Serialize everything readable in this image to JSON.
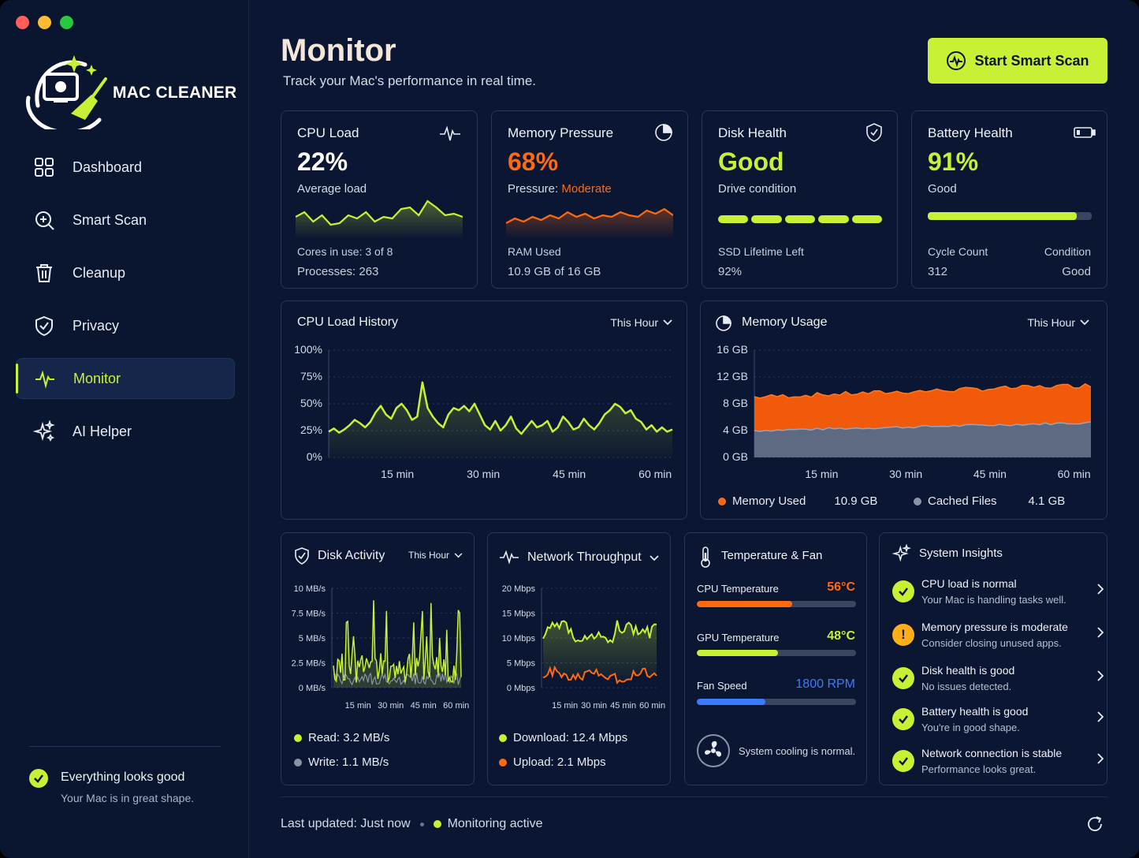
{
  "app": {
    "name": "MAC CLEANER",
    "colors": {
      "accent": "#c8f034",
      "orange": "#ff6a10",
      "blue": "#3b7bff",
      "gray": "#8a93a6"
    }
  },
  "sidebar": {
    "items": [
      {
        "label": "Dashboard",
        "icon": "grid-icon"
      },
      {
        "label": "Smart Scan",
        "icon": "scan-icon"
      },
      {
        "label": "Cleanup",
        "icon": "trash-icon"
      },
      {
        "label": "Privacy",
        "icon": "shield-icon"
      },
      {
        "label": "Monitor",
        "icon": "pulse-icon",
        "active": true
      },
      {
        "label": "AI Helper",
        "icon": "sparkles-icon"
      }
    ],
    "status": {
      "title": "Everything looks good",
      "detail": "Your Mac is in great shape."
    }
  },
  "header": {
    "title": "Monitor",
    "subtitle": "Track your Mac's performance in real time.",
    "scan_button": "Start Smart Scan"
  },
  "cpu_card": {
    "title": "CPU Load",
    "value": "22%",
    "caption": "Average load",
    "cores": "Cores in use: 3 of 8",
    "processes": "Processes: 263",
    "sparkline": [
      28,
      34,
      22,
      30,
      18,
      20,
      30,
      26,
      34,
      22,
      28,
      26,
      38,
      40,
      30,
      48,
      40,
      30,
      32,
      28
    ]
  },
  "memory_card": {
    "title": "Memory Pressure",
    "value": "68%",
    "caption_prefix": "Pressure: ",
    "caption_value": "Moderate",
    "ram_label": "RAM Used",
    "ram_value": "10.9 GB of 16 GB",
    "sparkline": [
      20,
      26,
      22,
      28,
      24,
      30,
      26,
      34,
      28,
      32,
      26,
      30,
      28,
      34,
      30,
      28,
      36,
      32,
      38,
      30
    ]
  },
  "disk_card": {
    "title": "Disk Health",
    "value": "Good",
    "caption": "Drive condition",
    "ssd_label": "SSD Lifetime Left",
    "ssd_value": "92%",
    "segments_filled": 5,
    "segments_total": 5
  },
  "battery_card": {
    "title": "Battery Health",
    "value": "91%",
    "caption": "Good",
    "cycle_label": "Cycle Count",
    "cycle_value": "312",
    "condition_label": "Condition",
    "condition_value": "Good",
    "level": 0.91
  },
  "cpu_history": {
    "title": "CPU Load History",
    "range": "This Hour",
    "y_ticks": [
      "100%",
      "75%",
      "50%",
      "25%",
      "0%"
    ],
    "x_ticks": [
      "15 min",
      "30 min",
      "45 min",
      "60 min"
    ]
  },
  "memory_usage": {
    "title": "Memory Usage",
    "range": "This Hour",
    "y_ticks": [
      "16 GB",
      "12 GB",
      "8 GB",
      "4 GB",
      "0 GB"
    ],
    "x_ticks": [
      "15 min",
      "30 min",
      "45 min",
      "60 min"
    ],
    "legend": [
      {
        "name": "Memory Used",
        "value": "10.9 GB",
        "color": "#ff6a10"
      },
      {
        "name": "Cached Files",
        "value": "4.1 GB",
        "color": "#8a93a6"
      }
    ]
  },
  "disk_activity": {
    "title": "Disk Activity",
    "range": "This Hour",
    "y_ticks": [
      "10 MB/s",
      "7.5 MB/s",
      "5 MB/s",
      "2.5 MB/s",
      "0 MB/s"
    ],
    "x_ticks": [
      "15 min",
      "30 min",
      "45 min",
      "60 min"
    ],
    "legend": [
      {
        "text": "Read: 3.2 MB/s",
        "color": "#c8f034"
      },
      {
        "text": "Write: 1.1 MB/s",
        "color": "#8a93a6"
      }
    ]
  },
  "network": {
    "title": "Network Throughput",
    "y_ticks": [
      "20 Mbps",
      "15 Mbps",
      "10 Mbps",
      "5 Mbps",
      "0 Mbps"
    ],
    "x_ticks": [
      "15 min",
      "30 min",
      "45 min",
      "60 min"
    ],
    "legend": [
      {
        "text": "Download: 12.4 Mbps",
        "color": "#c8f034"
      },
      {
        "text": "Upload: 2.1 Mbps",
        "color": "#ff6a10"
      }
    ]
  },
  "temperature": {
    "title": "Temperature & Fan",
    "rows": [
      {
        "label": "CPU Temperature",
        "value": "56°C",
        "color": "#ff6a10",
        "level": 0.6
      },
      {
        "label": "GPU Temperature",
        "value": "48°C",
        "color": "#c8f034",
        "level": 0.51
      },
      {
        "label": "Fan Speed",
        "value": "1800 RPM",
        "color": "#3b7bff",
        "level": 0.43
      }
    ],
    "cooling": "System cooling is normal."
  },
  "insights": {
    "title": "System Insights",
    "items": [
      {
        "title": "CPU load is normal",
        "detail": "Your Mac is handling tasks well.",
        "status": "ok"
      },
      {
        "title": "Memory pressure is moderate",
        "detail": "Consider closing unused apps.",
        "status": "warn"
      },
      {
        "title": "Disk health is good",
        "detail": "No issues detected.",
        "status": "ok"
      },
      {
        "title": "Battery health is good",
        "detail": "You're in good shape.",
        "status": "ok"
      },
      {
        "title": "Network connection is stable",
        "detail": "Performance looks great.",
        "status": "ok"
      }
    ]
  },
  "footer": {
    "updated": "Last updated: Just now",
    "monitoring": "Monitoring active"
  }
}
